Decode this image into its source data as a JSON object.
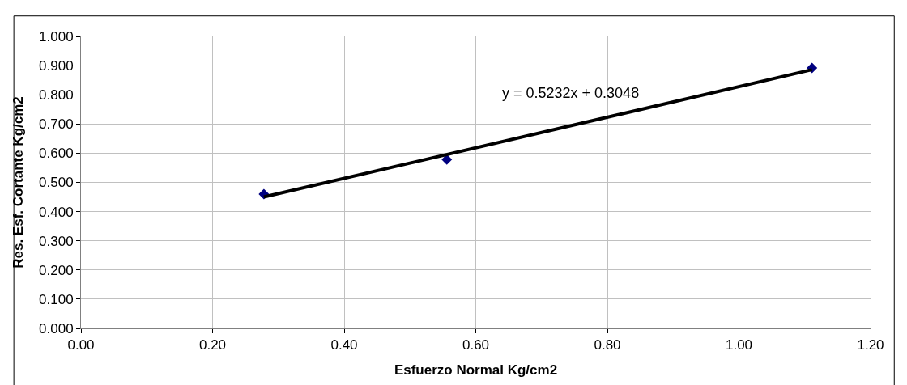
{
  "chart_data": {
    "type": "scatter",
    "xlabel": "Esfuerzo Normal Kg/cm2",
    "ylabel": "Res. Esf. Cortante Kg/cm2",
    "x": [
      0.278,
      0.556,
      1.111
    ],
    "series": [
      {
        "color": "#000080",
        "marker": "diamond",
        "values": [
          0.46,
          0.578,
          0.892
        ]
      },
      {
        "type": "line",
        "color": "#000000",
        "x": [
          0.278,
          1.111
        ],
        "values": [
          0.45,
          0.886
        ],
        "line_style": "solid"
      }
    ],
    "annotations": [
      "y = 0.5232x + 0.3048"
    ],
    "xlim": [
      0,
      1.2
    ],
    "xticks": [
      {
        "value": 0,
        "label": "0.00"
      },
      {
        "value": 0.2,
        "label": "0.20"
      },
      {
        "value": 0.4,
        "label": "0.40"
      },
      {
        "value": 0.6,
        "label": "0.60"
      },
      {
        "value": 0.8,
        "label": "0.80"
      },
      {
        "value": 1.0,
        "label": "1.00"
      },
      {
        "value": 1.2,
        "label": "1.20"
      }
    ],
    "ylim": [
      0,
      1.0
    ],
    "yticks": [
      {
        "value": 0,
        "label": "0.000"
      },
      {
        "value": 0.1,
        "label": "0.100"
      },
      {
        "value": 0.2,
        "label": "0.200"
      },
      {
        "value": 0.3,
        "label": "0.300"
      },
      {
        "value": 0.4,
        "label": "0.400"
      },
      {
        "value": 0.5,
        "label": "0.500"
      },
      {
        "value": 0.6,
        "label": "0.600"
      },
      {
        "value": 0.7,
        "label": "0.700"
      },
      {
        "value": 0.8,
        "label": "0.800"
      },
      {
        "value": 0.9,
        "label": "0.900"
      },
      {
        "value": 1.0,
        "label": "1.000"
      }
    ],
    "grid": true,
    "legend": false
  }
}
